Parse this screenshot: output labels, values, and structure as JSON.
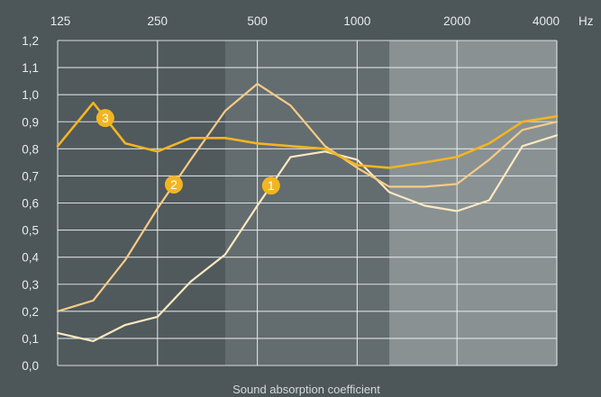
{
  "chart_data": {
    "type": "line",
    "xlabel": "Sound absorption coefficient",
    "x_unit": "Hz",
    "x_ticks": [
      "125",
      "250",
      "500",
      "1000",
      "2000",
      "4000"
    ],
    "x_scale": "log",
    "x": [
      125,
      160,
      200,
      250,
      315,
      400,
      500,
      630,
      800,
      1000,
      1250,
      1600,
      2000,
      2500,
      3150,
      4000
    ],
    "xlim": [
      125,
      4000
    ],
    "y_ticks": [
      "0,0",
      "0,1",
      "0,2",
      "0,3",
      "0,4",
      "0,5",
      "0,6",
      "0,7",
      "0,8",
      "0,9",
      "1,0",
      "1,1",
      "1,2"
    ],
    "ylim": [
      0,
      1.2
    ],
    "grid": true,
    "shaded_bands": [
      {
        "from": 400,
        "to": 1250,
        "color": "#636c6f"
      },
      {
        "from": 1250,
        "to": 4000,
        "color": "#899193"
      }
    ],
    "base_color": "#50595c",
    "series": [
      {
        "name": "1",
        "color": "#fbe8c1",
        "values": [
          0.12,
          0.09,
          0.15,
          0.18,
          0.31,
          0.41,
          0.59,
          0.77,
          0.79,
          0.76,
          0.64,
          0.59,
          0.57,
          0.61,
          0.81,
          0.85
        ],
        "marker_at": 550
      },
      {
        "name": "2",
        "color": "#f6cb86",
        "values": [
          0.2,
          0.24,
          0.39,
          0.58,
          0.76,
          0.94,
          1.04,
          0.96,
          0.81,
          0.73,
          0.66,
          0.66,
          0.67,
          0.76,
          0.87,
          0.9
        ],
        "marker_at": 280
      },
      {
        "name": "3",
        "color": "#f2b521",
        "values": [
          0.81,
          0.97,
          0.82,
          0.79,
          0.84,
          0.84,
          0.82,
          0.81,
          0.8,
          0.74,
          0.73,
          0.75,
          0.77,
          0.82,
          0.9,
          0.92
        ],
        "marker_at": 174
      }
    ]
  }
}
